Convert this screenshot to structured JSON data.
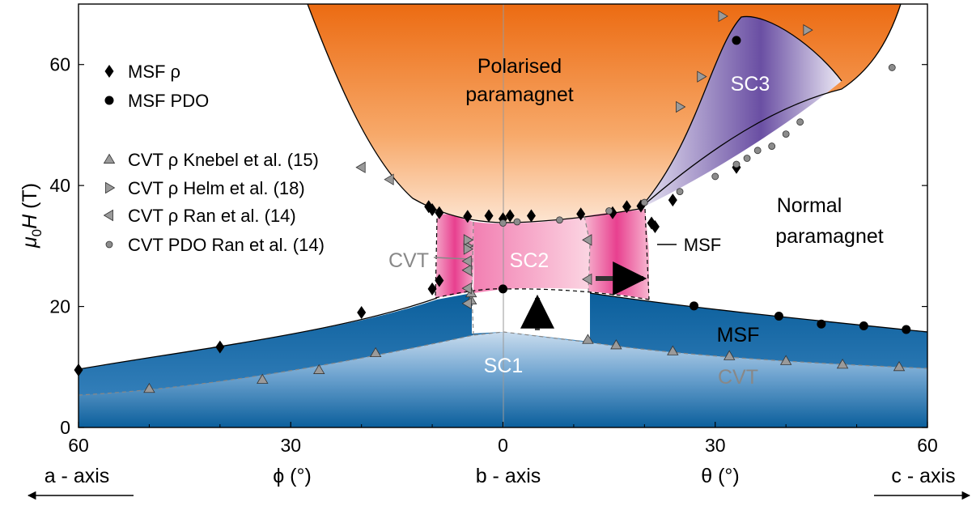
{
  "chart_data": {
    "type": "scatter",
    "ylabel_main": "μ",
    "ylabel_sub": "0",
    "ylabel_italic": "H",
    "ylabel_unit": " (T)",
    "ylim": [
      0,
      70
    ],
    "yticks": [
      "0",
      "20",
      "40",
      "60"
    ],
    "xticks": [
      "60",
      "30",
      "0",
      "30",
      "60"
    ],
    "axis_titles": {
      "phi": "ϕ (°)",
      "b_axis": "b - axis",
      "theta": "θ (°)",
      "a_axis": "a - axis",
      "c_axis": "c - axis"
    },
    "legend": [
      {
        "marker": "diamond",
        "label": "MSF ρ"
      },
      {
        "marker": "circle",
        "label": "MSF PDO"
      },
      {
        "marker": "tri-up",
        "label": "CVT ρ Knebel et al. (15)"
      },
      {
        "marker": "tri-right",
        "label": "CVT ρ Helm et al. (18)"
      },
      {
        "marker": "tri-left",
        "label": "CVT ρ Ran et al. (14)"
      },
      {
        "marker": "circle-gray",
        "label": "CVT PDO Ran et al. (14)"
      }
    ],
    "region_labels": {
      "pp1": "Polarised",
      "pp2": "paramagnet",
      "np1": "Normal",
      "np2": "paramagnet",
      "sc1": "SC1",
      "sc2": "SC2",
      "sc3": "SC3",
      "msf_right": "MSF",
      "cvt_right": "CVT",
      "cvt_left": "CVT",
      "msf_pointer": "MSF"
    },
    "colors": {
      "blue_dark": "#0b5f9c",
      "blue_light": "#c9dcee",
      "orange_dark": "#ec6b12",
      "orange_light": "#fde5d2",
      "pink_dark": "#e8408f",
      "pink_light": "#fbd0df",
      "purple_dark": "#6a4fa3",
      "purple_light": "#d8d4ea"
    },
    "series": [
      {
        "name": "MSF ρ",
        "marker": "diamond",
        "points": [
          [
            -60,
            9.5
          ],
          [
            -40,
            13.3
          ],
          [
            -20,
            19
          ],
          [
            -10.5,
            36.5
          ],
          [
            -10,
            36
          ],
          [
            -9,
            35.5
          ],
          [
            -5,
            34.9
          ],
          [
            -9,
            24.3
          ],
          [
            -10,
            22.9
          ],
          [
            -2,
            35
          ],
          [
            0,
            34.5
          ],
          [
            1,
            35
          ],
          [
            4,
            35
          ],
          [
            11,
            35.3
          ],
          [
            15.5,
            35.5
          ],
          [
            17.5,
            36.5
          ],
          [
            19.5,
            36.6
          ],
          [
            21,
            33.8
          ],
          [
            21.5,
            33.2
          ],
          [
            24,
            37.6
          ],
          [
            33,
            43
          ]
        ]
      },
      {
        "name": "MSF PDO",
        "marker": "circle",
        "points": [
          [
            0,
            22.9
          ],
          [
            33,
            64
          ],
          [
            27,
            20.1
          ],
          [
            39,
            18.4
          ],
          [
            45,
            17.1
          ],
          [
            51,
            16.8
          ],
          [
            57,
            16.2
          ]
        ]
      },
      {
        "name": "CVT ρ Knebel et al. (15)",
        "marker": "tri-up",
        "points": [
          [
            -50,
            6.4
          ],
          [
            -34,
            7.9
          ],
          [
            -26,
            9.5
          ],
          [
            -18,
            12.3
          ],
          [
            -4.5,
            21
          ],
          [
            -4.5,
            22.2
          ],
          [
            12,
            14.5
          ],
          [
            16,
            13.6
          ],
          [
            24,
            12.6
          ],
          [
            32,
            11.8
          ],
          [
            40,
            11
          ],
          [
            48,
            10.4
          ],
          [
            56,
            10
          ]
        ]
      },
      {
        "name": "CVT ρ Helm et al. (18)",
        "marker": "tri-right",
        "points": [
          [
            -5,
            30
          ],
          [
            -5,
            31
          ],
          [
            -5,
            29.5
          ],
          [
            31,
            68
          ],
          [
            43,
            65.7
          ],
          [
            25,
            53
          ],
          [
            28,
            58
          ]
        ]
      },
      {
        "name": "CVT ρ Ran et al. (14)",
        "marker": "tri-left",
        "points": [
          [
            -20,
            43
          ],
          [
            -16,
            41
          ],
          [
            -5,
            26
          ],
          [
            -5,
            27.5
          ],
          [
            -5,
            23
          ],
          [
            -5,
            20.5
          ],
          [
            12,
            24.5
          ],
          [
            12,
            31
          ]
        ]
      },
      {
        "name": "CVT PDO Ran et al. (14)",
        "marker": "circle-gray",
        "points": [
          [
            0,
            33.8
          ],
          [
            2,
            34
          ],
          [
            8,
            34.3
          ],
          [
            15,
            35.8
          ],
          [
            20,
            37.2
          ],
          [
            25,
            39
          ],
          [
            30,
            41.5
          ],
          [
            33,
            43.5
          ],
          [
            34.5,
            44.5
          ],
          [
            36,
            45.8
          ],
          [
            38,
            46.5
          ],
          [
            40,
            48.5
          ],
          [
            42,
            50.5
          ],
          [
            55,
            59.5
          ]
        ]
      }
    ]
  }
}
